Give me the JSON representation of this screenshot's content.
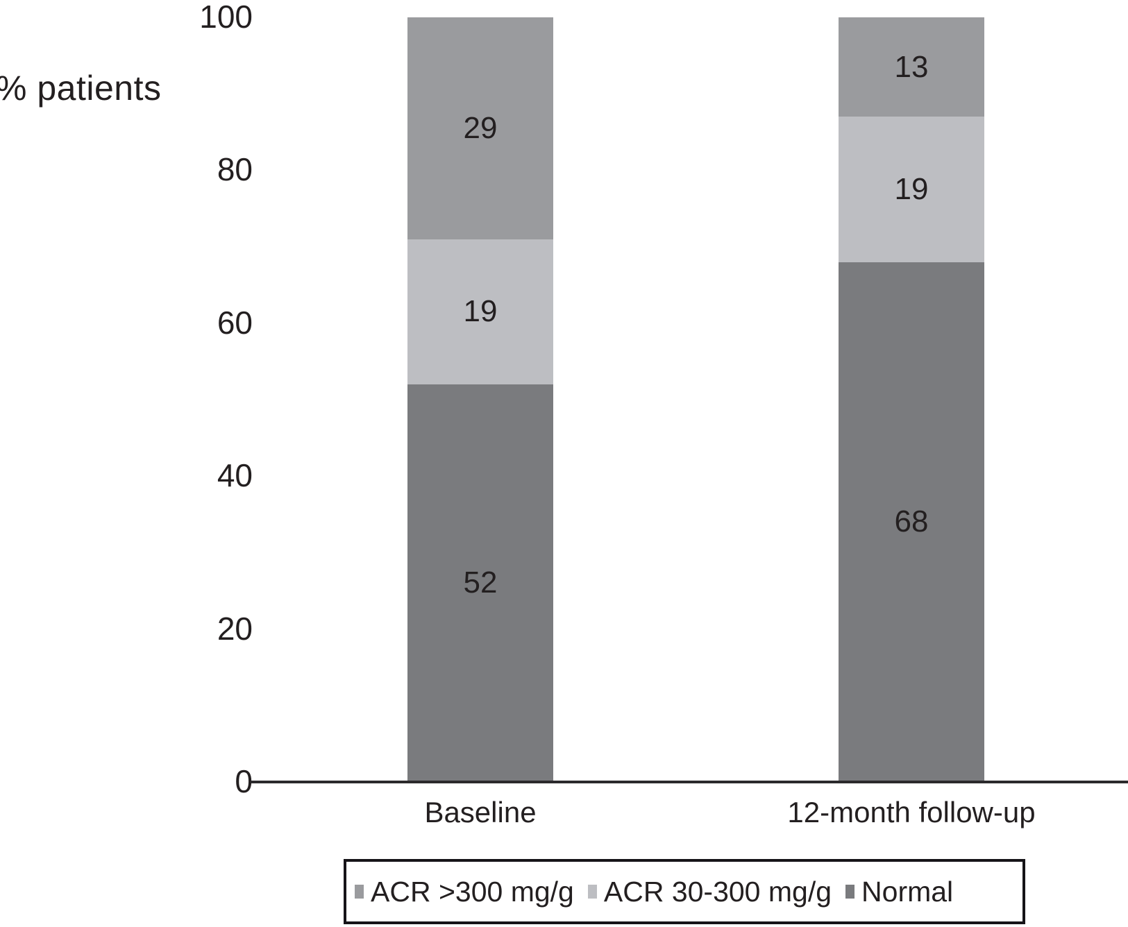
{
  "chart_data": {
    "type": "bar",
    "stacked": true,
    "title": "",
    "ylabel": "% patients",
    "xlabel": "",
    "ylim": [
      0,
      100
    ],
    "yticks": [
      0,
      20,
      40,
      60,
      80,
      100
    ],
    "grid": false,
    "categories": [
      "Baseline",
      "12-month follow-up"
    ],
    "series": [
      {
        "name": "Normal",
        "color": "#7a7b7e",
        "values": [
          52,
          68
        ]
      },
      {
        "name": "ACR 30-300 mg/g",
        "color": "#bdbec2",
        "values": [
          19,
          19
        ]
      },
      {
        "name": "ACR >300 mg/g",
        "color": "#9a9b9e",
        "values": [
          29,
          13
        ]
      }
    ],
    "bar_value_labels": [
      {
        "category": "Baseline",
        "labels": [
          52,
          19,
          29
        ]
      },
      {
        "category": "12-month follow-up",
        "labels": [
          68,
          19,
          13
        ]
      }
    ],
    "legend": {
      "position": "bottom",
      "items": [
        {
          "label": "ACR >300 mg/g",
          "color": "#9a9b9e"
        },
        {
          "label": "ACR 30-300 mg/g",
          "color": "#bdbec2"
        },
        {
          "label": "Normal",
          "color": "#7a7b7e"
        }
      ]
    },
    "text_color": "#231f20",
    "axis_color": "#2b2a2c"
  }
}
